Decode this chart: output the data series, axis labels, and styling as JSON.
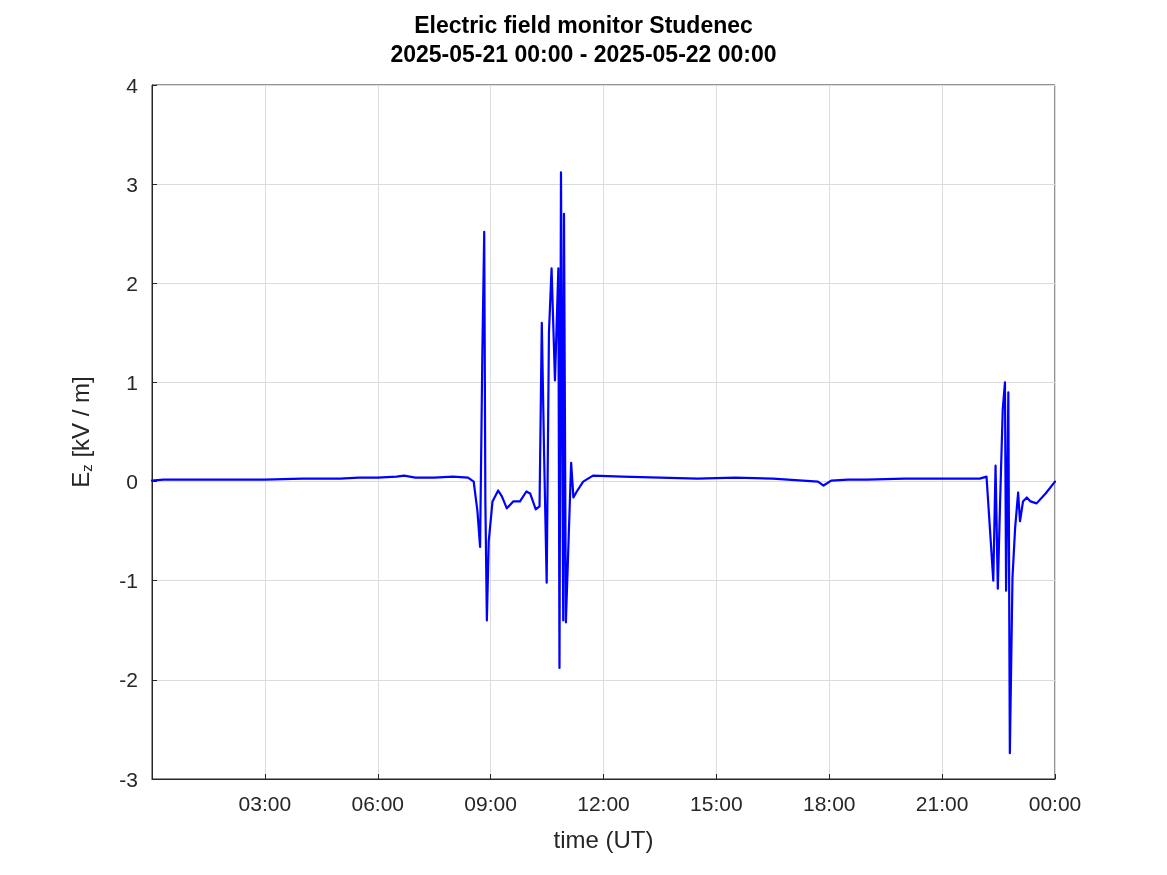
{
  "chart_data": {
    "type": "line",
    "title": "Electric field monitor Studenec",
    "subtitle": "2025-05-21 00:00 - 2025-05-22 00:00",
    "xlabel": "time (UT)",
    "ylabel": "E$_{z}$ [kV / m]",
    "xlim": [
      0,
      24
    ],
    "ylim": [
      -3,
      4
    ],
    "xticks": [
      {
        "value": 3,
        "label": "03:00"
      },
      {
        "value": 6,
        "label": "06:00"
      },
      {
        "value": 9,
        "label": "09:00"
      },
      {
        "value": 12,
        "label": "12:00"
      },
      {
        "value": 15,
        "label": "15:00"
      },
      {
        "value": 18,
        "label": "18:00"
      },
      {
        "value": 21,
        "label": "21:00"
      },
      {
        "value": 24,
        "label": "00:00"
      }
    ],
    "yticks": [
      -3,
      -2,
      -1,
      0,
      1,
      2,
      3,
      4
    ],
    "grid": true,
    "marker": "none",
    "line_style": "solid",
    "series": [
      {
        "color": "#0000ff",
        "x": [
          0,
          0.3,
          1,
          2,
          3,
          4,
          5,
          5.5,
          6,
          6.5,
          6.7,
          7,
          7.5,
          8,
          8.4,
          8.55,
          8.65,
          8.72,
          8.78,
          8.83,
          8.86,
          8.9,
          8.95,
          9.05,
          9.2,
          9.3,
          9.43,
          9.6,
          9.78,
          9.95,
          10.05,
          10.2,
          10.3,
          10.36,
          10.42,
          10.49,
          10.55,
          10.62,
          10.71,
          10.8,
          10.83,
          10.87,
          10.93,
          10.95,
          11.0,
          11.08,
          11.14,
          11.2,
          11.29,
          11.46,
          11.72,
          12.5,
          13.5,
          14.5,
          15.5,
          16.5,
          17.3,
          17.7,
          17.85,
          18.05,
          18.5,
          19,
          20,
          21,
          22,
          22.18,
          22.28,
          22.36,
          22.42,
          22.48,
          22.54,
          22.61,
          22.67,
          22.7,
          22.76,
          22.8,
          22.87,
          22.94,
          23.02,
          23.07,
          23.15,
          23.25,
          23.35,
          23.51,
          23.75,
          24
        ],
        "values": [
          0.01,
          0.02,
          0.02,
          0.02,
          0.02,
          0.03,
          0.03,
          0.04,
          0.04,
          0.05,
          0.06,
          0.04,
          0.04,
          0.05,
          0.04,
          0,
          -0.3,
          -0.66,
          1.3,
          2.52,
          -0.2,
          -1.4,
          -0.6,
          -0.2,
          -0.09,
          -0.15,
          -0.27,
          -0.2,
          -0.2,
          -0.1,
          -0.12,
          -0.28,
          -0.25,
          1.6,
          0.3,
          -1.02,
          1.5,
          2.15,
          1.02,
          2.15,
          -1.88,
          3.12,
          -1.4,
          2.7,
          -1.42,
          -0.5,
          0.19,
          -0.16,
          -0.1,
          0,
          0.06,
          0.05,
          0.04,
          0.03,
          0.04,
          0.03,
          0.01,
          0.0,
          -0.04,
          0.01,
          0.02,
          0.02,
          0.03,
          0.03,
          0.03,
          0.05,
          -0.53,
          -1.0,
          0.16,
          -1.08,
          -0.22,
          0.72,
          1.0,
          -1.1,
          0.9,
          -2.74,
          -0.97,
          -0.47,
          -0.11,
          -0.4,
          -0.2,
          -0.16,
          -0.2,
          -0.22,
          -0.12,
          0
        ]
      }
    ]
  }
}
